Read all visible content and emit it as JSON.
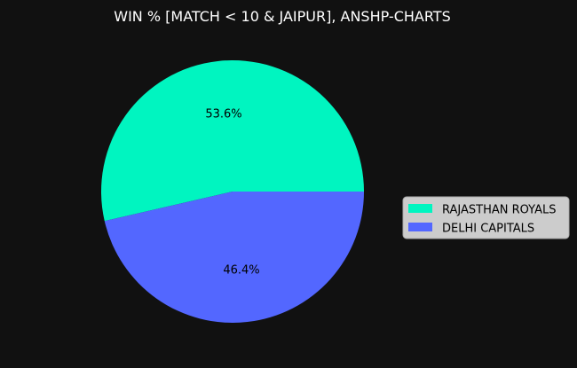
{
  "chart_data": {
    "type": "pie",
    "title": "WIN % [MATCH < 10 & JAIPUR], ANSHP-CHARTS",
    "categories": [
      "RAJASTHAN ROYALS",
      "DELHI CAPITALS"
    ],
    "values": [
      53.6,
      46.4
    ],
    "labels": [
      "53.6%",
      "46.4%"
    ],
    "colors": [
      "#00f5c0",
      "#5367ff"
    ],
    "legend_placement": "center-right",
    "background": "#111111"
  }
}
